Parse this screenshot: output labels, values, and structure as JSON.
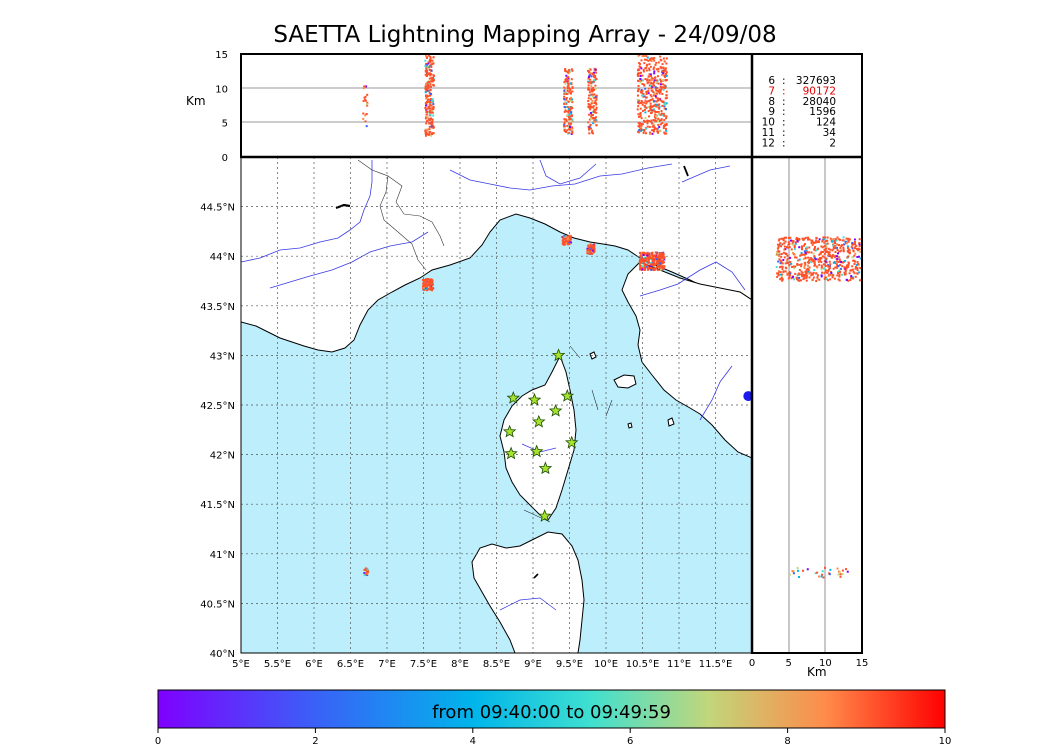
{
  "title": "SAETTA Lightning Mapping Array - 24/09/08",
  "colors": {
    "sea": "#bdeefc",
    "land": "#ffffff",
    "rivers": "#3a3ae6",
    "station_fill": "#a6e22e",
    "highlight": "#e60000"
  },
  "map": {
    "lon_ticks": [
      "5°E",
      "5.5°E",
      "6°E",
      "6.5°E",
      "7°E",
      "7.5°E",
      "8°E",
      "8.5°E",
      "9°E",
      "9.5°E",
      "10°E",
      "10.5°E",
      "11°E",
      "11.5°E"
    ],
    "lat_ticks": [
      "40°N",
      "40.5°N",
      "41°N",
      "41.5°N",
      "42°N",
      "42.5°N",
      "43°N",
      "43.5°N",
      "44°N",
      "44.5°N"
    ],
    "lon_range": [
      5,
      12
    ],
    "lat_range": [
      40,
      45
    ],
    "stations": [
      {
        "lon": 9.35,
        "lat": 43.0
      },
      {
        "lon": 8.73,
        "lat": 42.57
      },
      {
        "lon": 9.02,
        "lat": 42.55
      },
      {
        "lon": 9.47,
        "lat": 42.59
      },
      {
        "lon": 9.31,
        "lat": 42.44
      },
      {
        "lon": 9.08,
        "lat": 42.33
      },
      {
        "lon": 8.68,
        "lat": 42.23
      },
      {
        "lon": 9.53,
        "lat": 42.12
      },
      {
        "lon": 9.05,
        "lat": 42.03
      },
      {
        "lon": 8.7,
        "lat": 42.01
      },
      {
        "lon": 9.17,
        "lat": 41.86
      },
      {
        "lon": 9.16,
        "lat": 41.38
      }
    ]
  },
  "top_panel": {
    "ylabel": "Km",
    "yticks": [
      "0",
      "5",
      "10",
      "15"
    ],
    "counts": [
      {
        "label": "6",
        "value": "327693"
      },
      {
        "label": "7",
        "value": "90172"
      },
      {
        "label": "8",
        "value": "28040"
      },
      {
        "label": "9",
        "value": "1596"
      },
      {
        "label": "10",
        "value": "124"
      },
      {
        "label": "11",
        "value": "34"
      },
      {
        "label": "12",
        "value": "2"
      }
    ],
    "highlight_index": 1
  },
  "right_panel": {
    "xlabel": "Km",
    "xticks": [
      "0",
      "5",
      "10",
      "15"
    ]
  },
  "colorbar": {
    "label": "from 09:40:00 to 09:49:59",
    "ticks": [
      "0",
      "2",
      "4",
      "6",
      "8",
      "10"
    ],
    "range": [
      0,
      10
    ]
  }
}
